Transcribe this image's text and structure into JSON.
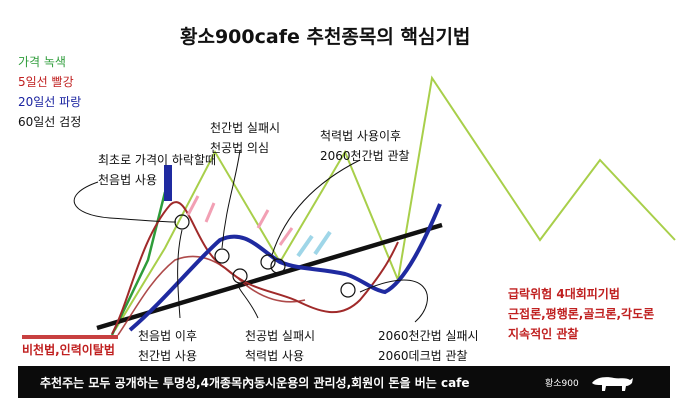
{
  "title": "황소900cafe 추천종목의 핵심기법",
  "legend": [
    {
      "text": "가격  녹색",
      "color": "#2e9c3a"
    },
    {
      "text": "5일선 빨강",
      "color": "#c02020"
    },
    {
      "text": "20일선 파랑",
      "color": "#1a23a0"
    },
    {
      "text": "60일선 검정",
      "color": "#111111"
    }
  ],
  "annotations": {
    "first_drop": [
      "최초로 가격이 하락할때",
      "천음법 사용"
    ],
    "cheongan_fail": [
      "천간법 실패시",
      "천공법 의심"
    ],
    "cheokryeok": [
      "척력법 사용이후",
      "2060천간법 관찰"
    ],
    "cheoneum_after": [
      "천음법 이후",
      "천간법 사용"
    ],
    "cheongong_fail": [
      "천공법 실패시",
      "척력법 사용"
    ],
    "2060_fail": [
      "2060천간법 실패시",
      "2060데크법 관찰"
    ],
    "crash_risk": [
      "급락위험 4대회피기법",
      "근접론,평행론,골크론,각도론",
      "지속적인 관찰"
    ],
    "bicheon": "비천법,인력이탈법"
  },
  "bottom_bar": {
    "text": "추천주는 모두 공개하는 투명성,4개종목內동시운용의 관리성,회원이 돈을 버는 cafe",
    "logo": "황소900"
  },
  "colors": {
    "price": "#a8cf4a",
    "ma5": "#a02a2a",
    "ma20": "#1f2aa0",
    "ma60": "#111111",
    "pink": "#f2a0b4",
    "lightblue": "#9fd6e8",
    "red_text": "#c02020",
    "bar": "#0b0b0b"
  }
}
